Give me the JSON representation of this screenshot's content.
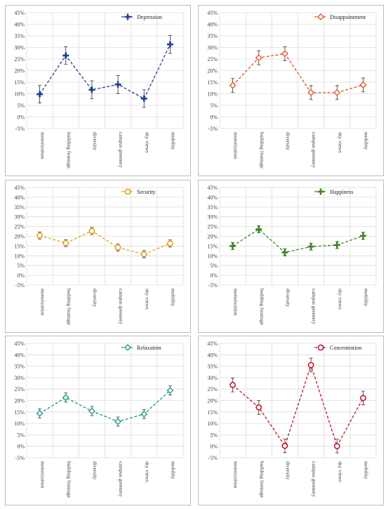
{
  "chart_data": [
    {
      "type": "line",
      "panel": "depression",
      "categories": [
        "motorization",
        "building frontage",
        "diversity",
        "campus greenery",
        "sky views",
        "mobility"
      ],
      "series": [
        {
          "name": "Depression",
          "values": [
            9.8,
            26.5,
            11.7,
            14.0,
            7.9,
            31.3
          ],
          "errors": [
            3.8,
            3.8,
            3.9,
            3.9,
            3.8,
            3.9
          ]
        }
      ],
      "color": "#1f3f8f",
      "marker": "plus",
      "ylim": [
        -5,
        45
      ],
      "yticks": [
        -5,
        0,
        5,
        10,
        15,
        20,
        25,
        30,
        35,
        40,
        45
      ],
      "ytick_labels": [
        "-5%",
        "0%",
        "5%",
        "10%",
        "15%",
        "20%",
        "25%",
        "30%",
        "35%",
        "40%",
        "45%"
      ],
      "grid": true,
      "legend": "top-right"
    },
    {
      "type": "line",
      "panel": "disappointment",
      "categories": [
        "motorization",
        "building frontage",
        "diversity",
        "campus greenery",
        "sky views",
        "mobility"
      ],
      "series": [
        {
          "name": "Disappointment",
          "values": [
            13.6,
            25.5,
            27.3,
            10.5,
            10.5,
            13.8
          ],
          "errors": [
            3.0,
            3.0,
            3.0,
            3.0,
            3.0,
            3.0
          ]
        }
      ],
      "color": "#e0501e",
      "marker": "diamond",
      "ylim": [
        -5,
        45
      ],
      "yticks": [
        -5,
        0,
        5,
        10,
        15,
        20,
        25,
        30,
        35,
        40,
        45
      ],
      "ytick_labels": [
        "-5%",
        "0%",
        "5%",
        "10%",
        "15%",
        "20%",
        "25%",
        "30%",
        "35%",
        "40%",
        "45%"
      ],
      "grid": true,
      "legend": "top-right"
    },
    {
      "type": "line",
      "panel": "security",
      "categories": [
        "motorization",
        "building frontage",
        "diversity",
        "campus greenery",
        "sky views",
        "mobility"
      ],
      "series": [
        {
          "name": "Security",
          "values": [
            20.4,
            16.5,
            22.7,
            14.2,
            10.8,
            16.3
          ],
          "errors": [
            1.8,
            1.8,
            1.8,
            1.8,
            1.8,
            1.8
          ]
        }
      ],
      "color": "#e3a21a",
      "marker": "circle",
      "ylim": [
        -5,
        45
      ],
      "yticks": [
        -5,
        0,
        5,
        10,
        15,
        20,
        25,
        30,
        35,
        40,
        45
      ],
      "ytick_labels": [
        "-5%",
        "0%",
        "5%",
        "10%",
        "15%",
        "20%",
        "25%",
        "30%",
        "35%",
        "40%",
        "45%"
      ],
      "grid": true,
      "legend": "top-right"
    },
    {
      "type": "line",
      "panel": "happiness",
      "categories": [
        "motorization",
        "building frontage",
        "diversity",
        "campus greenery",
        "sky views",
        "mobility"
      ],
      "series": [
        {
          "name": "Happiness",
          "values": [
            15.0,
            23.6,
            11.7,
            14.7,
            15.5,
            20.2
          ],
          "errors": [
            1.8,
            1.8,
            1.8,
            1.8,
            1.8,
            1.8
          ]
        }
      ],
      "color": "#3a8a1c",
      "marker": "plus",
      "ylim": [
        -5,
        45
      ],
      "yticks": [
        -5,
        0,
        5,
        10,
        15,
        20,
        25,
        30,
        35,
        40,
        45
      ],
      "ytick_labels": [
        "-5%",
        "0%",
        "5%",
        "10%",
        "15%",
        "20%",
        "25%",
        "30%",
        "35%",
        "40%",
        "45%"
      ],
      "grid": true,
      "legend": "top-right"
    },
    {
      "type": "line",
      "panel": "relaxation",
      "categories": [
        "motorization",
        "building frontage",
        "diversity",
        "campus greenery",
        "sky views",
        "mobility"
      ],
      "series": [
        {
          "name": "Relaxation",
          "values": [
            14.4,
            21.3,
            15.4,
            10.8,
            14.1,
            24.4
          ],
          "errors": [
            2.0,
            2.0,
            2.0,
            2.0,
            2.0,
            2.0
          ]
        }
      ],
      "color": "#17948b",
      "marker": "diamond",
      "ylim": [
        -5,
        45
      ],
      "yticks": [
        -5,
        0,
        5,
        10,
        15,
        20,
        25,
        30,
        35,
        40,
        45
      ],
      "ytick_labels": [
        "-5%",
        "0%",
        "5%",
        "10%",
        "15%",
        "20%",
        "25%",
        "30%",
        "35%",
        "40%",
        "45%"
      ],
      "grid": true,
      "legend": "top-right"
    },
    {
      "type": "line",
      "panel": "concentration",
      "categories": [
        "motorization",
        "building frontage",
        "diversity",
        "campus greenery",
        "sky views",
        "mobility"
      ],
      "series": [
        {
          "name": "Concentration",
          "values": [
            26.8,
            17.0,
            0.2,
            35.5,
            0.1,
            21.1
          ],
          "errors": [
            3.0,
            3.0,
            3.0,
            3.0,
            3.0,
            3.0
          ]
        }
      ],
      "color": "#c0152a",
      "marker": "circle",
      "ylim": [
        -5,
        45
      ],
      "yticks": [
        -5,
        0,
        5,
        10,
        15,
        20,
        25,
        30,
        35,
        40,
        45
      ],
      "ytick_labels": [
        "-5%",
        "0%",
        "5%",
        "10%",
        "15%",
        "20%",
        "25%",
        "30%",
        "35%",
        "40%",
        "45%"
      ],
      "grid": true,
      "legend": "top-right"
    }
  ]
}
